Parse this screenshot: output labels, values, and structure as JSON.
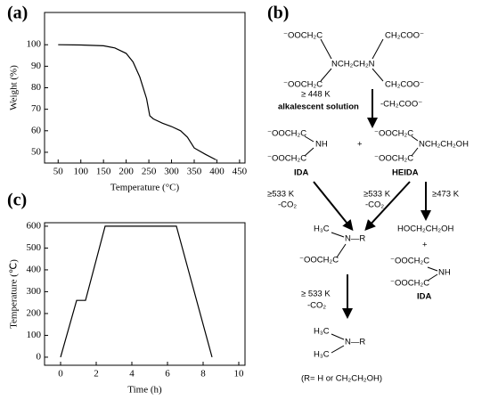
{
  "chart_data": [
    {
      "type": "line",
      "panel_label": "(a)",
      "xlabel": "Temperature (°C)",
      "ylabel": "Weight (%)",
      "x": [
        50,
        100,
        150,
        175,
        200,
        215,
        230,
        245,
        252,
        260,
        280,
        300,
        320,
        335,
        350,
        375,
        398
      ],
      "values": [
        100,
        99.9,
        99.5,
        98.5,
        96,
        92,
        85,
        75,
        67,
        65.5,
        63.5,
        62,
        60,
        57,
        52,
        49,
        46.5
      ],
      "color": "#000000",
      "xlim": [
        20,
        462
      ],
      "ylim": [
        45,
        115
      ],
      "xticks": [
        50,
        100,
        150,
        200,
        250,
        300,
        350,
        400,
        450
      ],
      "yticks": [
        50,
        60,
        70,
        80,
        90,
        100
      ]
    },
    {
      "type": "line",
      "panel_label": "(c)",
      "xlabel": "Time (h)",
      "ylabel": "Temperature (℃)",
      "x": [
        0,
        0.9,
        1.4,
        2.5,
        6.5,
        8.5
      ],
      "values": [
        0,
        260,
        260,
        600,
        600,
        0
      ],
      "color": "#000000",
      "xlim": [
        -0.9,
        10.35
      ],
      "ylim": [
        -37,
        616
      ],
      "xticks": [
        0,
        2,
        4,
        6,
        8,
        10
      ],
      "yticks": [
        0,
        100,
        200,
        300,
        400,
        500,
        600
      ]
    }
  ],
  "diagram": {
    "label": "(b)",
    "texts": [
      "⁻OOCH₂C",
      "CH₂COO⁻",
      "NCH₂CH₂N",
      "⁻OOCH₂C",
      "CH₂COO⁻",
      "≥ 448 K",
      "alkalescent solution",
      "-CH₂COO⁻",
      "⁻OOCH₂C",
      "NH",
      "⁻OOCH₂C",
      "IDA",
      "+",
      "⁻OOCH₂C",
      "NCH₂CH₂OH",
      "⁻OOCH₂C",
      "HEIDA",
      "≥533 K",
      "-CO₂",
      "≥533 K",
      "-CO₂",
      "≥473 K",
      "H₃C",
      "N—R",
      "⁻OOCH₂C",
      "HOCH₂CH₂OH",
      "+",
      "⁻OOCH₂C",
      "NH",
      "⁻OOCH₂C",
      "IDA",
      "≥ 533 K",
      "-CO₂",
      "H₃C",
      "N—R",
      "H₃C",
      "(R= H or CH₂CH₂OH)"
    ]
  }
}
